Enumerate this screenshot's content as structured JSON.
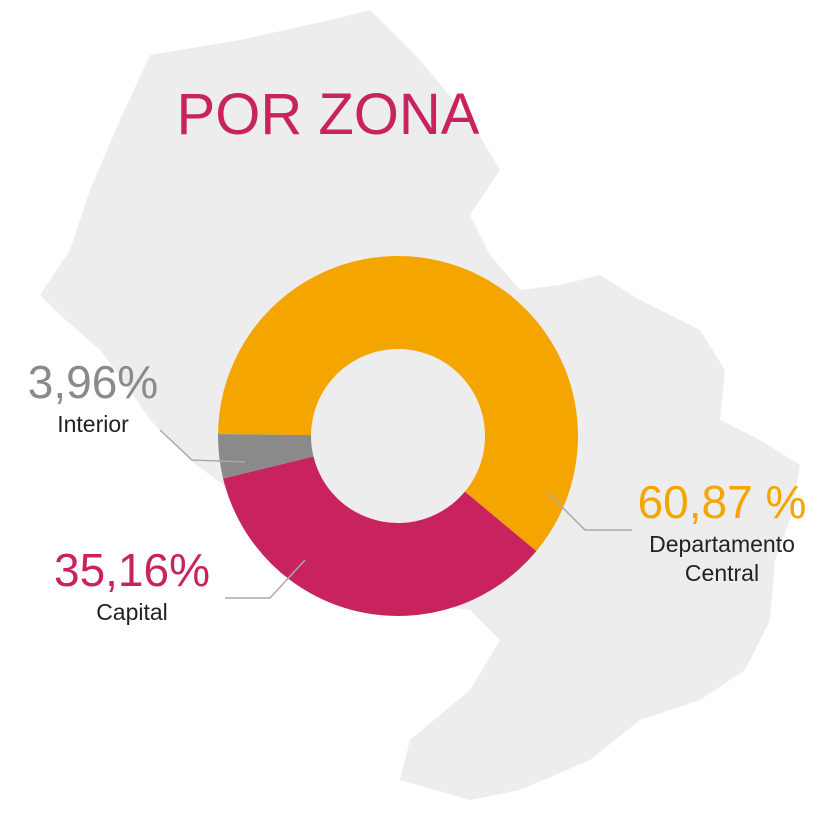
{
  "chart_data": {
    "type": "donut",
    "title": "POR ZONA",
    "categories": [
      "Departamento Central",
      "Capital",
      "Interior"
    ],
    "values": [
      60.87,
      35.16,
      3.96
    ],
    "value_labels": [
      "60,87 %",
      "35,16%",
      "3,96%"
    ],
    "colors": [
      "#f5a500",
      "#c8235f",
      "#8a8a8a"
    ]
  }
}
